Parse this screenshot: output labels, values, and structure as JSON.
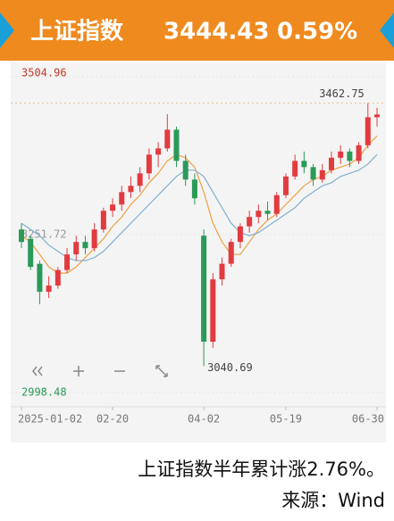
{
  "header": {
    "title": "上证指数",
    "value": "3444.43",
    "change": "0.59%"
  },
  "chart_data": {
    "type": "candlestick",
    "categories": [
      "2025-01-02",
      null,
      null,
      null,
      null,
      null,
      null,
      null,
      null,
      null,
      "02-20",
      null,
      null,
      null,
      null,
      null,
      null,
      null,
      null,
      null,
      "04-02",
      null,
      null,
      null,
      null,
      null,
      null,
      null,
      null,
      "05-19",
      null,
      null,
      null,
      null,
      null,
      null,
      null,
      null,
      null,
      "06-30"
    ],
    "ohlc": [
      [
        3260,
        3270,
        3230,
        3240
      ],
      [
        3245,
        3250,
        3195,
        3200
      ],
      [
        3205,
        3210,
        3140,
        3160
      ],
      [
        3160,
        3185,
        3150,
        3170
      ],
      [
        3170,
        3200,
        3165,
        3195
      ],
      [
        3195,
        3230,
        3190,
        3220
      ],
      [
        3220,
        3250,
        3210,
        3240
      ],
      [
        3240,
        3250,
        3220,
        3230
      ],
      [
        3230,
        3270,
        3225,
        3260
      ],
      [
        3260,
        3295,
        3255,
        3290
      ],
      [
        3290,
        3310,
        3280,
        3300
      ],
      [
        3300,
        3330,
        3290,
        3320
      ],
      [
        3320,
        3345,
        3310,
        3330
      ],
      [
        3330,
        3360,
        3320,
        3350
      ],
      [
        3350,
        3390,
        3340,
        3380
      ],
      [
        3380,
        3400,
        3360,
        3390
      ],
      [
        3390,
        3445,
        3385,
        3420
      ],
      [
        3420,
        3425,
        3360,
        3370
      ],
      [
        3370,
        3380,
        3330,
        3340
      ],
      [
        3340,
        3350,
        3300,
        3310
      ],
      [
        3250,
        3260,
        3040.69,
        3080
      ],
      [
        3080,
        3190,
        3070,
        3180
      ],
      [
        3180,
        3215,
        3170,
        3205
      ],
      [
        3205,
        3245,
        3200,
        3240
      ],
      [
        3240,
        3270,
        3230,
        3265
      ],
      [
        3265,
        3290,
        3255,
        3280
      ],
      [
        3280,
        3300,
        3270,
        3290
      ],
      [
        3290,
        3305,
        3275,
        3285
      ],
      [
        3285,
        3320,
        3280,
        3315
      ],
      [
        3315,
        3350,
        3310,
        3345
      ],
      [
        3345,
        3380,
        3340,
        3370
      ],
      [
        3370,
        3385,
        3350,
        3360
      ],
      [
        3360,
        3365,
        3330,
        3340
      ],
      [
        3340,
        3365,
        3335,
        3355
      ],
      [
        3355,
        3385,
        3350,
        3375
      ],
      [
        3375,
        3395,
        3365,
        3385
      ],
      [
        3385,
        3390,
        3360,
        3370
      ],
      [
        3370,
        3400,
        3365,
        3395
      ],
      [
        3395,
        3462.75,
        3390,
        3440
      ],
      [
        3440,
        3455,
        3425,
        3444.43
      ]
    ],
    "up_color": "#e23b3f",
    "down_color": "#2a9a58",
    "lines": [
      {
        "color": "#f0a040",
        "values": [
          3250,
          3240,
          3220,
          3200,
          3190,
          3190,
          3200,
          3215,
          3230,
          3245,
          3265,
          3280,
          3300,
          3315,
          3335,
          3350,
          3370,
          3380,
          3375,
          3360,
          3320,
          3270,
          3240,
          3220,
          3220,
          3240,
          3260,
          3275,
          3285,
          3300,
          3315,
          3330,
          3340,
          3345,
          3355,
          3360,
          3365,
          3375,
          3395,
          3410
        ]
      },
      {
        "color": "#7fb0d0",
        "values": [
          3270,
          3260,
          3250,
          3235,
          3225,
          3215,
          3210,
          3210,
          3215,
          3225,
          3240,
          3255,
          3270,
          3285,
          3300,
          3315,
          3330,
          3345,
          3355,
          3355,
          3345,
          3320,
          3295,
          3270,
          3255,
          3250,
          3255,
          3265,
          3275,
          3285,
          3295,
          3310,
          3320,
          3330,
          3335,
          3345,
          3350,
          3355,
          3365,
          3380
        ]
      }
    ],
    "ylim": [
      2998.48,
      3504.96
    ],
    "yticks": [
      3504.96,
      3251.72,
      2998.48
    ],
    "ytick_colors": [
      "#c0392b",
      "#999999",
      "#2a9a58"
    ],
    "annotations": [
      3462.75,
      3040.69
    ]
  },
  "caption": {
    "text": "上证指数半年累计涨2.76%。",
    "source": "来源：Wind"
  }
}
